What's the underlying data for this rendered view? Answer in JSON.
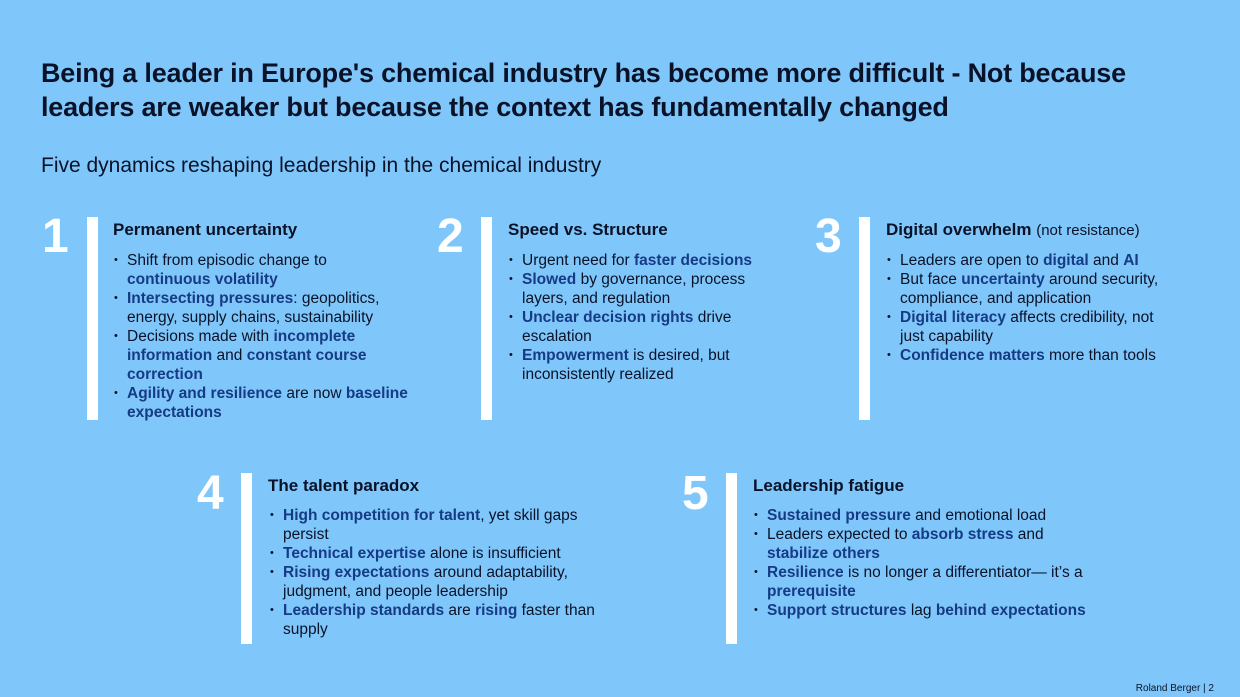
{
  "slide": {
    "title": "Being a leader in Europe's chemical industry has become more difficult - Not because leaders are weaker but because the context has fundamentally changed",
    "subtitle": "Five dynamics reshaping leadership in the chemical industry",
    "footer": "Roland Berger  |  2"
  },
  "dynamics": [
    {
      "number": "1",
      "title": "Permanent uncertainty",
      "title_note": "",
      "items": [
        [
          {
            "t": "Shift from episodic change to "
          },
          {
            "t": "continuous volatility",
            "b": true
          }
        ],
        [
          {
            "t": "Intersecting pressures",
            "b": true
          },
          {
            "t": ": geopolitics, energy, supply chains, sustainability"
          }
        ],
        [
          {
            "t": "Decisions made with "
          },
          {
            "t": "incomplete information",
            "b": true
          },
          {
            "t": " and "
          },
          {
            "t": "constant course correction",
            "b": true
          }
        ],
        [
          {
            "t": "Agility and resilience",
            "b": true
          },
          {
            "t": " are now "
          },
          {
            "t": "baseline expectations",
            "b": true
          }
        ]
      ]
    },
    {
      "number": "2",
      "title": "Speed vs. Structure",
      "title_note": "",
      "items": [
        [
          {
            "t": "Urgent need for "
          },
          {
            "t": "faster decisions",
            "b": true
          }
        ],
        [
          {
            "t": "Slowed",
            "b": true
          },
          {
            "t": " by governance, process layers, and regulation"
          }
        ],
        [
          {
            "t": "Unclear decision rights",
            "b": true
          },
          {
            "t": " drive escalation"
          }
        ],
        [
          {
            "t": "Empowerment",
            "b": true
          },
          {
            "t": " is desired, but inconsistently realized"
          }
        ]
      ]
    },
    {
      "number": "3",
      "title": "Digital overwhelm",
      "title_note": "(not resistance)",
      "items": [
        [
          {
            "t": "Leaders are open to "
          },
          {
            "t": "digital",
            "b": true
          },
          {
            "t": " and "
          },
          {
            "t": "AI",
            "b": true
          }
        ],
        [
          {
            "t": "But face "
          },
          {
            "t": "uncertainty",
            "b": true
          },
          {
            "t": " around security, compliance, and application"
          }
        ],
        [
          {
            "t": "Digital literacy",
            "b": true
          },
          {
            "t": " affects credibility, not just capability"
          }
        ],
        [
          {
            "t": "Confidence matters",
            "b": true
          },
          {
            "t": " more than tools"
          }
        ]
      ]
    },
    {
      "number": "4",
      "title": "The talent paradox",
      "title_note": "",
      "items": [
        [
          {
            "t": "High competition for talent",
            "b": true
          },
          {
            "t": ", yet skill gaps persist"
          }
        ],
        [
          {
            "t": "Technical expertise",
            "b": true
          },
          {
            "t": " alone is insufficient"
          }
        ],
        [
          {
            "t": "Rising expectations",
            "b": true
          },
          {
            "t": " around adaptability, judgment, and people leadership"
          }
        ],
        [
          {
            "t": "Leadership standards",
            "b": true
          },
          {
            "t": " are "
          },
          {
            "t": "rising",
            "b": true
          },
          {
            "t": " faster than supply"
          }
        ]
      ]
    },
    {
      "number": "5",
      "title": "Leadership fatigue",
      "title_note": "",
      "items": [
        [
          {
            "t": "Sustained pressure",
            "b": true
          },
          {
            "t": " and emotional load"
          }
        ],
        [
          {
            "t": "Leaders expected to "
          },
          {
            "t": "absorb stress",
            "b": true
          },
          {
            "t": " and "
          },
          {
            "t": "stabilize others",
            "b": true
          }
        ],
        [
          {
            "t": "Resilience",
            "b": true
          },
          {
            "t": " is no longer a differentiator— it’s a "
          },
          {
            "t": "prerequisite",
            "b": true
          }
        ],
        [
          {
            "t": "Support structures",
            "b": true
          },
          {
            "t": " lag "
          },
          {
            "t": "behind expectations",
            "b": true
          }
        ]
      ]
    }
  ]
}
